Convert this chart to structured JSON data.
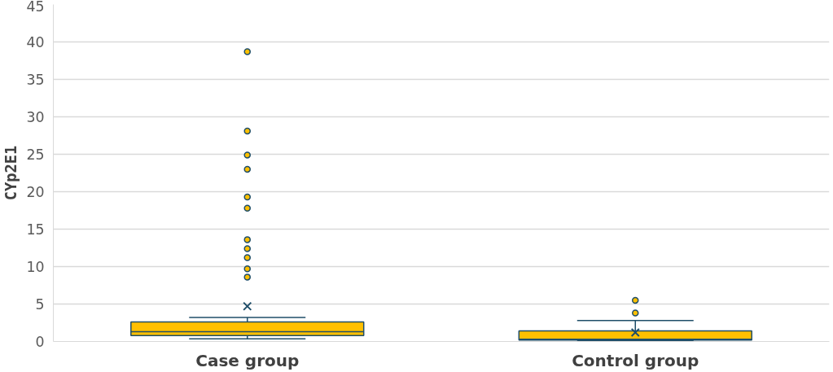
{
  "chart_data": {
    "type": "box",
    "ylabel": "CYp2E1",
    "categories": [
      "Case group",
      "Control group"
    ],
    "boxes": [
      {
        "low": 0.35,
        "q1": 0.8,
        "median": 1.3,
        "q3": 2.6,
        "high": 3.2,
        "mean": 4.7,
        "outliers": [
          38.7,
          28.1,
          24.9,
          23.0,
          19.3,
          17.8,
          13.6,
          12.4,
          11.2,
          9.7,
          8.6
        ]
      },
      {
        "low": 0.1,
        "q1": 0.2,
        "median": 0.3,
        "q3": 1.4,
        "high": 2.8,
        "mean": 1.2,
        "outliers": [
          5.5,
          3.8
        ]
      }
    ],
    "color": "#ffc000",
    "ylim": [
      0,
      45
    ],
    "yticks": [
      0,
      5,
      10,
      15,
      20,
      25,
      30,
      35,
      40,
      45
    ],
    "grid": "y",
    "marker": "circle"
  }
}
